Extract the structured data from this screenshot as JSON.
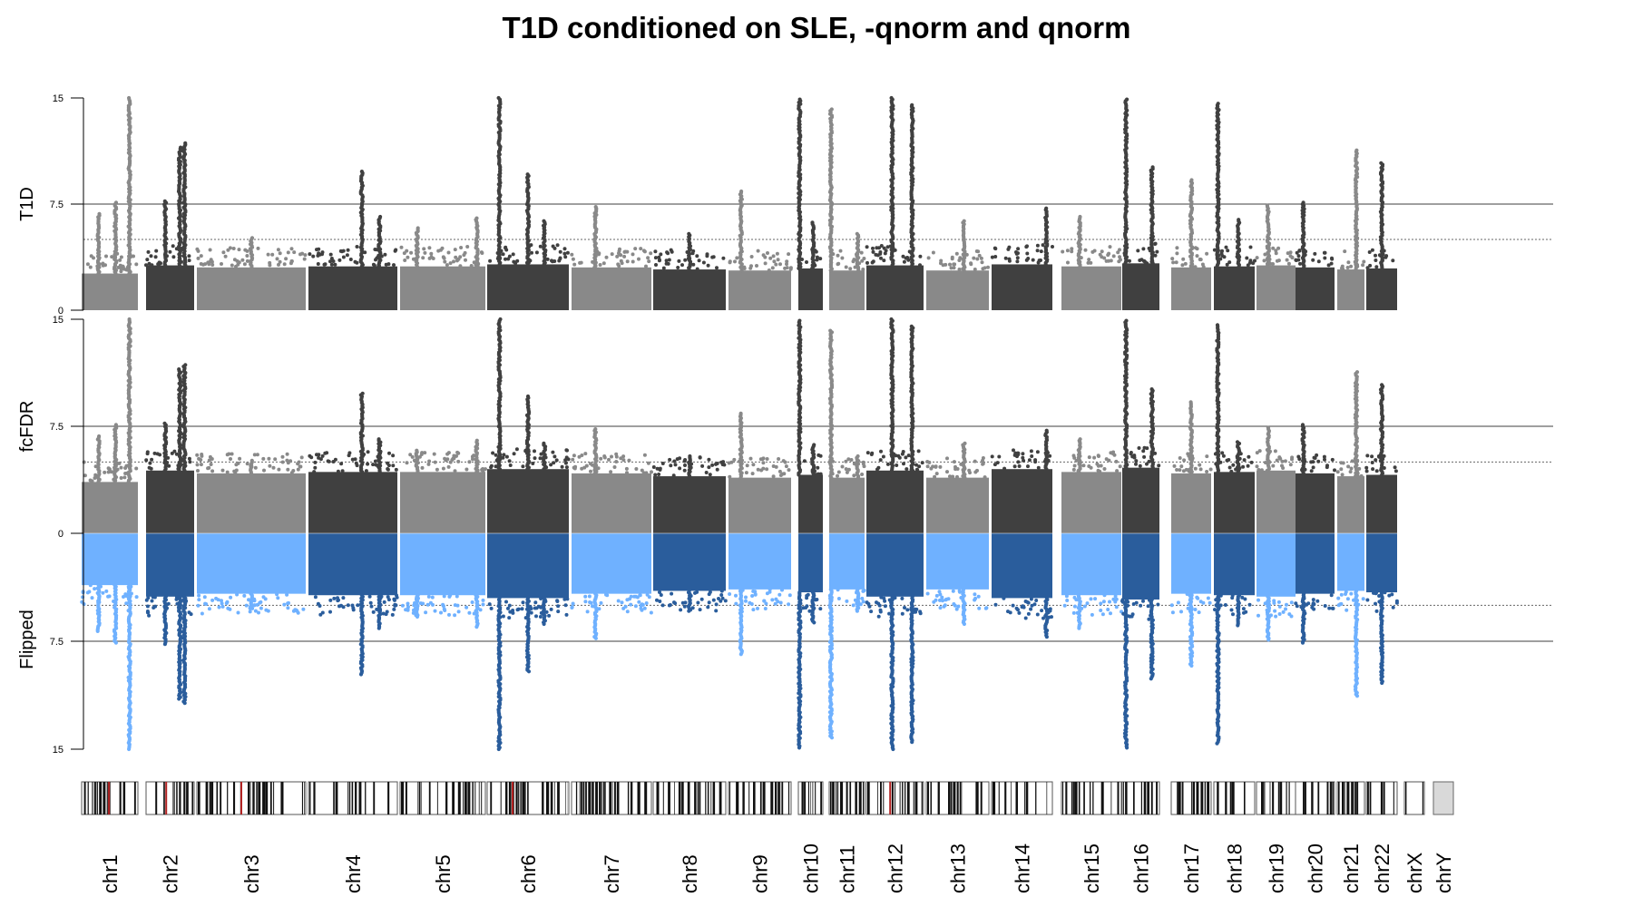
{
  "chart_data": {
    "type": "scatter",
    "title": "T1D conditioned on SLE, -qnorm and qnorm",
    "panels": [
      {
        "ylabel": "T1D",
        "ylim": [
          0,
          15
        ],
        "yticks": [
          "0",
          "7.5",
          "15"
        ],
        "thresholds": {
          "solid": 7.5,
          "dotted": 5
        },
        "direction": "up"
      },
      {
        "ylabel": "fcFDR",
        "ylim": [
          0,
          15
        ],
        "yticks": [
          "0",
          "7.5",
          "15"
        ],
        "thresholds": {
          "solid": 7.5,
          "dotted": 5
        },
        "direction": "up"
      },
      {
        "ylabel": "Flipped",
        "ylim": [
          0,
          15
        ],
        "yticks": [
          "7.5",
          "15"
        ],
        "thresholds": {
          "solid": 7.5,
          "dotted": 5
        },
        "direction": "down"
      }
    ],
    "colors": {
      "gray_light": "#898989",
      "gray_dark": "#404040",
      "blue_light": "#6fb1ff",
      "blue_dark": "#2a5d9c",
      "threshold": "#666666"
    },
    "chromosomes": [
      {
        "name": "chr1",
        "base": 3.6,
        "peaks": [
          [
            0.85,
            15
          ],
          [
            0.3,
            6.8
          ],
          [
            0.6,
            7.6
          ]
        ]
      },
      {
        "name": "chr2",
        "base": 4.4,
        "peaks": [
          [
            0.7,
            11.5
          ],
          [
            0.8,
            11.8
          ],
          [
            0.4,
            7.7
          ]
        ]
      },
      {
        "name": "chr3",
        "base": 4.2,
        "peaks": [
          [
            0.5,
            5.1
          ]
        ]
      },
      {
        "name": "chr4",
        "base": 4.3,
        "peaks": [
          [
            0.6,
            9.8
          ],
          [
            0.8,
            6.6
          ]
        ]
      },
      {
        "name": "chr5",
        "base": 4.3,
        "peaks": [
          [
            0.2,
            5.8
          ],
          [
            0.9,
            6.5
          ]
        ]
      },
      {
        "name": "chr6",
        "base": 4.5,
        "peaks": [
          [
            0.15,
            15
          ],
          [
            0.5,
            9.6
          ],
          [
            0.7,
            6.3
          ]
        ]
      },
      {
        "name": "chr7",
        "base": 4.2,
        "peaks": [
          [
            0.3,
            7.3
          ]
        ]
      },
      {
        "name": "chr8",
        "base": 4.0,
        "peaks": [
          [
            0.5,
            5.4
          ]
        ]
      },
      {
        "name": "chr9",
        "base": 3.9,
        "peaks": [
          [
            0.2,
            8.4
          ]
        ]
      },
      {
        "name": "chr10",
        "base": 4.1,
        "peaks": [
          [
            0.05,
            14.9
          ],
          [
            0.6,
            6.2
          ]
        ]
      },
      {
        "name": "chr11",
        "base": 3.9,
        "peaks": [
          [
            0.05,
            14.2
          ],
          [
            0.8,
            5.4
          ]
        ]
      },
      {
        "name": "chr12",
        "base": 4.4,
        "peaks": [
          [
            0.45,
            15
          ],
          [
            0.8,
            14.5
          ]
        ]
      },
      {
        "name": "chr13",
        "base": 3.9,
        "peaks": [
          [
            0.6,
            6.3
          ]
        ]
      },
      {
        "name": "chr14",
        "base": 4.5,
        "peaks": [
          [
            0.9,
            7.2
          ]
        ]
      },
      {
        "name": "chr15",
        "base": 4.3,
        "peaks": [
          [
            0.3,
            6.6
          ]
        ]
      },
      {
        "name": "chr16",
        "base": 4.6,
        "peaks": [
          [
            0.1,
            14.9
          ],
          [
            0.8,
            10.1
          ]
        ]
      },
      {
        "name": "chr17",
        "base": 4.2,
        "peaks": [
          [
            0.5,
            9.2
          ]
        ]
      },
      {
        "name": "chr18",
        "base": 4.3,
        "peaks": [
          [
            0.1,
            14.6
          ],
          [
            0.6,
            6.4
          ]
        ]
      },
      {
        "name": "chr19",
        "base": 4.4,
        "peaks": [
          [
            0.3,
            7.4
          ]
        ]
      },
      {
        "name": "chr20",
        "base": 4.2,
        "peaks": [
          [
            0.2,
            7.6
          ]
        ]
      },
      {
        "name": "chr21",
        "base": 4.0,
        "peaks": [
          [
            0.7,
            11.3
          ]
        ]
      },
      {
        "name": "chr22",
        "base": 4.1,
        "peaks": [
          [
            0.5,
            10.4
          ]
        ]
      },
      {
        "name": "chrX",
        "base": 0,
        "peaks": []
      },
      {
        "name": "chrY",
        "base": 0,
        "peaks": []
      }
    ]
  }
}
